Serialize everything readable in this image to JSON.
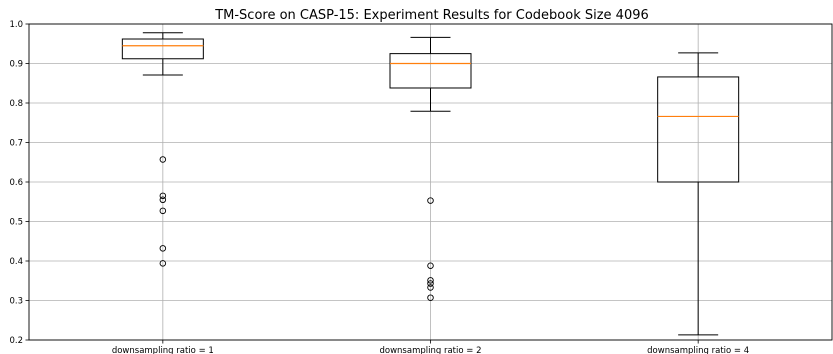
{
  "chart_data": {
    "type": "box",
    "title": "TM-Score on CASP-15: Experiment Results for Codebook Size 4096",
    "xlabel": "",
    "ylabel": "",
    "ylim": [
      0.2,
      1.0
    ],
    "yticks": [
      "0.2",
      "0.3",
      "0.4",
      "0.5",
      "0.6",
      "0.7",
      "0.8",
      "0.9",
      "1.0"
    ],
    "grid": true,
    "categories": [
      "downsampling ratio = 1",
      "downsampling ratio = 2",
      "downsampling ratio = 4"
    ],
    "boxes": [
      {
        "whisker_low": 0.871,
        "q1": 0.912,
        "median": 0.945,
        "q3": 0.962,
        "whisker_high": 0.978,
        "outliers": [
          0.657,
          0.565,
          0.555,
          0.527,
          0.432,
          0.394
        ]
      },
      {
        "whisker_low": 0.779,
        "q1": 0.838,
        "median": 0.9,
        "q3": 0.925,
        "whisker_high": 0.966,
        "outliers": [
          0.553,
          0.388,
          0.351,
          0.343,
          0.333,
          0.307
        ]
      },
      {
        "whisker_low": 0.213,
        "q1": 0.6,
        "median": 0.766,
        "q3": 0.866,
        "whisker_high": 0.927,
        "outliers": []
      }
    ],
    "colors": {
      "box": "#000000",
      "median": "#ff7f0e",
      "grid": "#b0b0b0"
    }
  }
}
